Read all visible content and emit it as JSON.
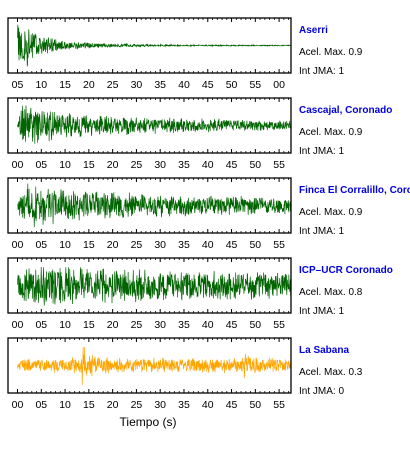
{
  "chart_data": {
    "type": "line",
    "xlabel": "Tiempo (s)",
    "xlim": [
      -2,
      57.5
    ],
    "x_ticks": [
      "00",
      "05",
      "10",
      "15",
      "20",
      "25",
      "30",
      "35",
      "40",
      "45",
      "50",
      "55"
    ],
    "panels": [
      {
        "name": "Aserri",
        "acel_label": "Acel. Max. 0.9",
        "int_label": "Int JMA: 1",
        "color": "#006400",
        "duration": 60,
        "x_ticks": [
          "05",
          "10",
          "15",
          "20",
          "25",
          "30",
          "35",
          "40",
          "45",
          "50",
          "55",
          "00"
        ],
        "envelope": [
          [
            0,
            0.95
          ],
          [
            2,
            0.85
          ],
          [
            5,
            0.45
          ],
          [
            10,
            0.18
          ],
          [
            20,
            0.08
          ],
          [
            35,
            0.03
          ],
          [
            60,
            0.02
          ]
        ]
      },
      {
        "name": "Cascajal, Coronado",
        "acel_label": "Acel. Max. 0.9",
        "int_label": "Int JMA: 1",
        "color": "#006400",
        "duration": 57.5,
        "envelope": [
          [
            0,
            0.15
          ],
          [
            1,
            0.9
          ],
          [
            8,
            0.6
          ],
          [
            20,
            0.4
          ],
          [
            40,
            0.28
          ],
          [
            57.5,
            0.2
          ]
        ]
      },
      {
        "name": "Finca El Corralillo, Coronado",
        "acel_label": "Acel. Max. 0.9",
        "int_label": "Int JMA: 1",
        "color": "#006400",
        "duration": 57.5,
        "envelope": [
          [
            0,
            0.4
          ],
          [
            2,
            0.95
          ],
          [
            10,
            0.7
          ],
          [
            25,
            0.5
          ],
          [
            40,
            0.42
          ],
          [
            57.5,
            0.35
          ]
        ]
      },
      {
        "name": "ICP–UCR Coronado",
        "acel_label": "Acel. Max. 0.8",
        "int_label": "Int JMA: 1",
        "color": "#006400",
        "duration": 57.5,
        "envelope": [
          [
            0,
            0.55
          ],
          [
            3,
            0.9
          ],
          [
            15,
            0.8
          ],
          [
            30,
            0.65
          ],
          [
            45,
            0.6
          ],
          [
            57.5,
            0.5
          ]
        ]
      },
      {
        "name": "La Sabana",
        "acel_label": "Acel. Max. 0.3",
        "int_label": "Int JMA: 0",
        "color": "#ffa500",
        "duration": 57.5,
        "envelope": [
          [
            0,
            0.3
          ],
          [
            10,
            0.3
          ],
          [
            13.2,
            0.5
          ],
          [
            13.8,
            1.0
          ],
          [
            14.6,
            0.5
          ],
          [
            20,
            0.32
          ],
          [
            47,
            0.32
          ],
          [
            48,
            0.7
          ],
          [
            49,
            0.35
          ],
          [
            57.5,
            0.3
          ]
        ]
      }
    ]
  }
}
